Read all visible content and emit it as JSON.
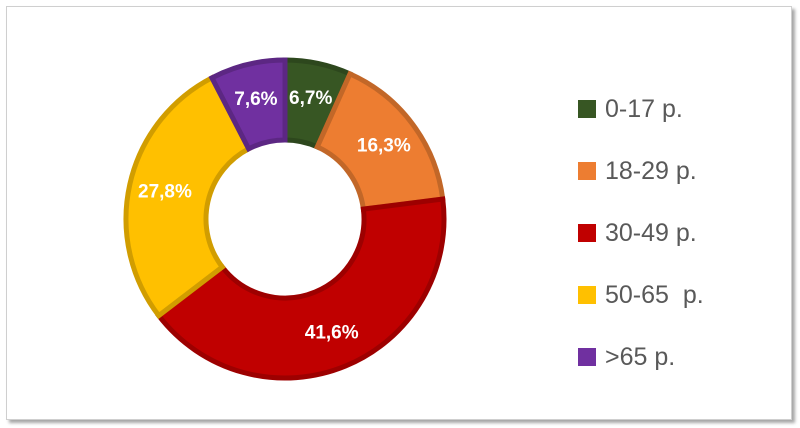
{
  "chart_data": {
    "type": "pie",
    "donut": true,
    "labels": [
      "0-17 р.",
      "18-29 р.",
      "30-49 р.",
      "50-65  р.",
      ">65 р."
    ],
    "values": [
      6.7,
      16.3,
      41.6,
      27.8,
      7.6
    ],
    "data_labels": [
      "6,7%",
      "16,3%",
      "41,6%",
      "27,8%",
      "7,6%"
    ],
    "colors": [
      "#375623",
      "#ED7D31",
      "#C00000",
      "#FFC000",
      "#7030A0"
    ],
    "legend_position": "right"
  }
}
